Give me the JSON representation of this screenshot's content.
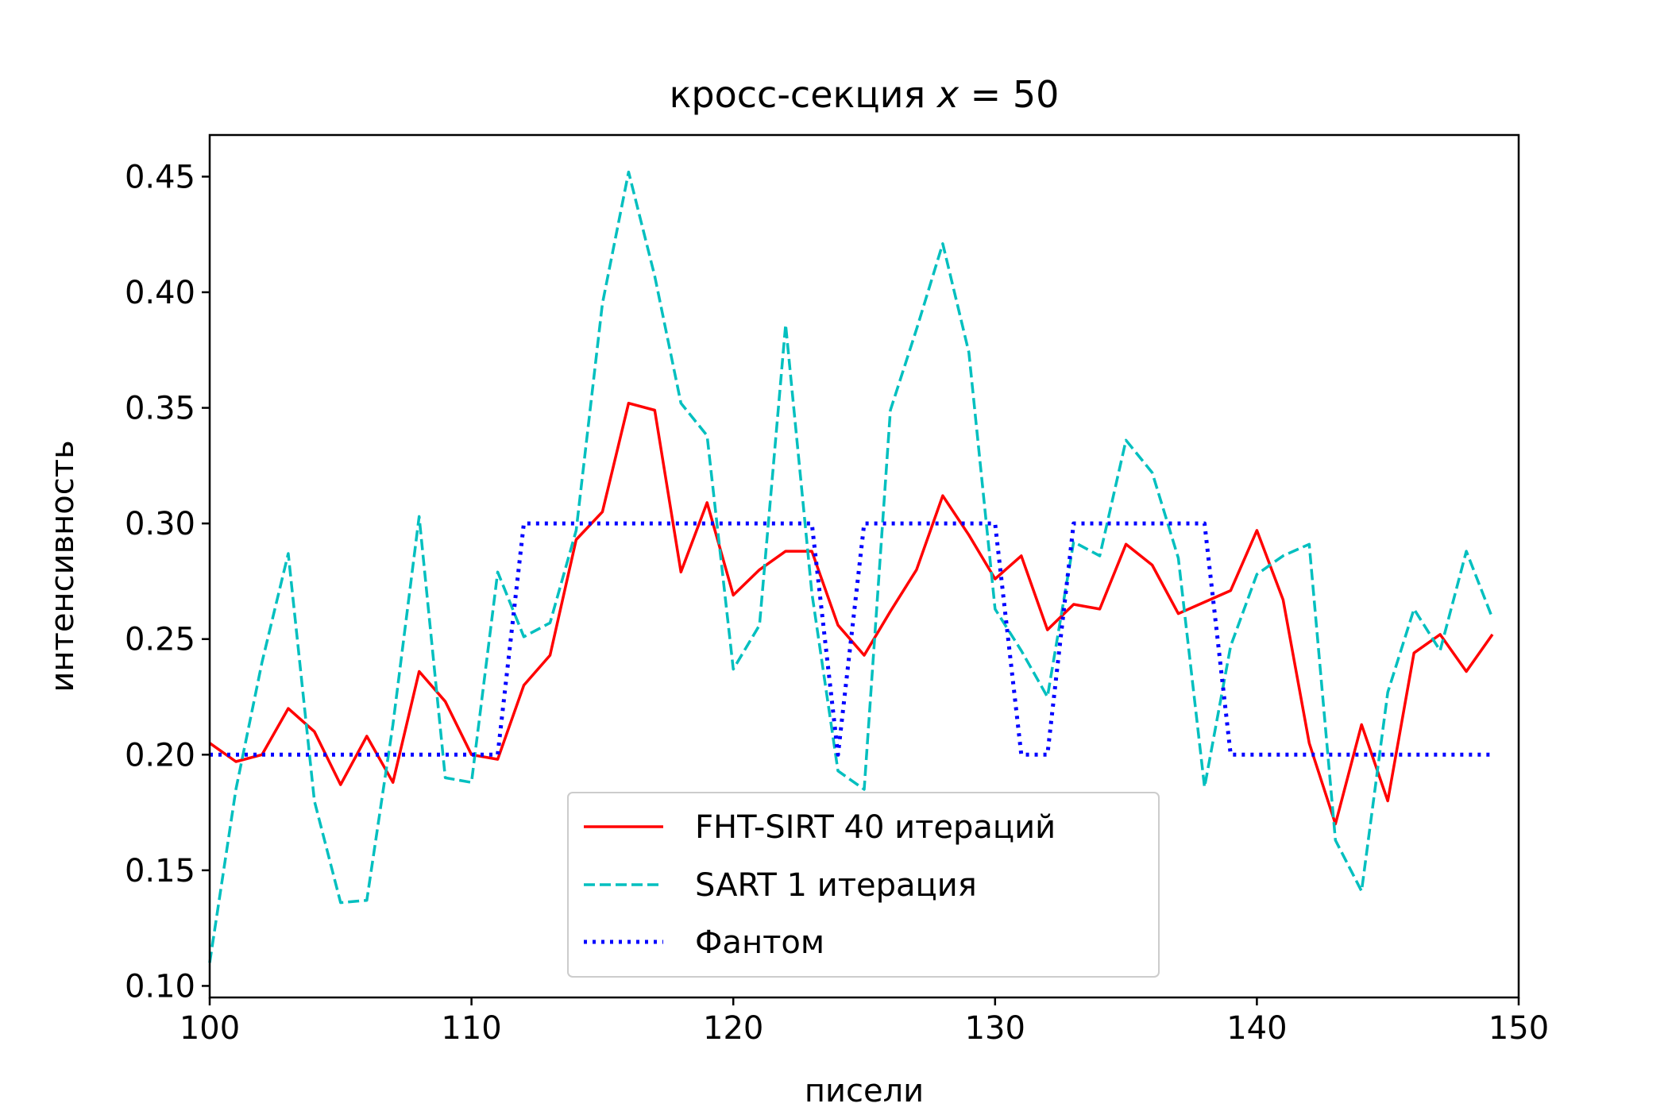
{
  "chart_data": {
    "type": "line",
    "title": "кросс-секция x = 50",
    "title_prefix": "кросс-секция ",
    "title_var": "x",
    "title_rest": " = 50",
    "xlabel": "писели",
    "ylabel": "интенсивность",
    "xlim": [
      100,
      150
    ],
    "ylim": [
      0.095,
      0.468
    ],
    "xticks": [
      100,
      110,
      120,
      130,
      140,
      150
    ],
    "xtick_labels": [
      "100",
      "110",
      "120",
      "130",
      "140",
      "150"
    ],
    "yticks": [
      0.1,
      0.15,
      0.2,
      0.25,
      0.3,
      0.35,
      0.4,
      0.45
    ],
    "ytick_labels": [
      "0.10",
      "0.15",
      "0.20",
      "0.25",
      "0.30",
      "0.35",
      "0.40",
      "0.45"
    ],
    "grid": false,
    "legend_position": "lower center",
    "x": [
      100,
      101,
      102,
      103,
      104,
      105,
      106,
      107,
      108,
      109,
      110,
      111,
      112,
      113,
      114,
      115,
      116,
      117,
      118,
      119,
      120,
      121,
      122,
      123,
      124,
      125,
      126,
      127,
      128,
      129,
      130,
      131,
      132,
      133,
      134,
      135,
      136,
      137,
      138,
      139,
      140,
      141,
      142,
      143,
      144,
      145,
      146,
      147,
      148,
      149
    ],
    "series": [
      {
        "name": "FHT-SIRT 40 итераций",
        "color": "#ff0000",
        "style": "solid",
        "values": [
          0.205,
          0.197,
          0.2,
          0.22,
          0.21,
          0.187,
          0.208,
          0.188,
          0.236,
          0.223,
          0.2,
          0.198,
          0.23,
          0.243,
          0.293,
          0.305,
          0.352,
          0.349,
          0.279,
          0.309,
          0.269,
          0.28,
          0.288,
          0.288,
          0.256,
          0.243,
          0.262,
          0.28,
          0.312,
          0.295,
          0.276,
          0.286,
          0.254,
          0.265,
          0.263,
          0.291,
          0.282,
          0.261,
          0.266,
          0.271,
          0.297,
          0.267,
          0.205,
          0.17,
          0.213,
          0.18,
          0.244,
          0.252,
          0.236,
          0.252
        ]
      },
      {
        "name": "SART 1 итерация",
        "color": "#00bfbf",
        "style": "dashed",
        "values": [
          0.11,
          0.185,
          0.24,
          0.287,
          0.18,
          0.136,
          0.137,
          0.213,
          0.303,
          0.19,
          0.188,
          0.279,
          0.251,
          0.257,
          0.297,
          0.395,
          0.452,
          0.407,
          0.352,
          0.338,
          0.237,
          0.256,
          0.386,
          0.27,
          0.193,
          0.185,
          0.349,
          0.384,
          0.421,
          0.374,
          0.263,
          0.245,
          0.225,
          0.292,
          0.286,
          0.336,
          0.322,
          0.285,
          0.186,
          0.247,
          0.278,
          0.286,
          0.291,
          0.163,
          0.141,
          0.227,
          0.263,
          0.245,
          0.288,
          0.259
        ]
      },
      {
        "name": "Фантом",
        "color": "#0000ff",
        "style": "dotted",
        "values": [
          0.2,
          0.2,
          0.2,
          0.2,
          0.2,
          0.2,
          0.2,
          0.2,
          0.2,
          0.2,
          0.2,
          0.2,
          0.3,
          0.3,
          0.3,
          0.3,
          0.3,
          0.3,
          0.3,
          0.3,
          0.3,
          0.3,
          0.3,
          0.3,
          0.2,
          0.3,
          0.3,
          0.3,
          0.3,
          0.3,
          0.3,
          0.2,
          0.2,
          0.3,
          0.3,
          0.3,
          0.3,
          0.3,
          0.3,
          0.2,
          0.2,
          0.2,
          0.2,
          0.2,
          0.2,
          0.2,
          0.2,
          0.2,
          0.2,
          0.2
        ]
      }
    ]
  }
}
